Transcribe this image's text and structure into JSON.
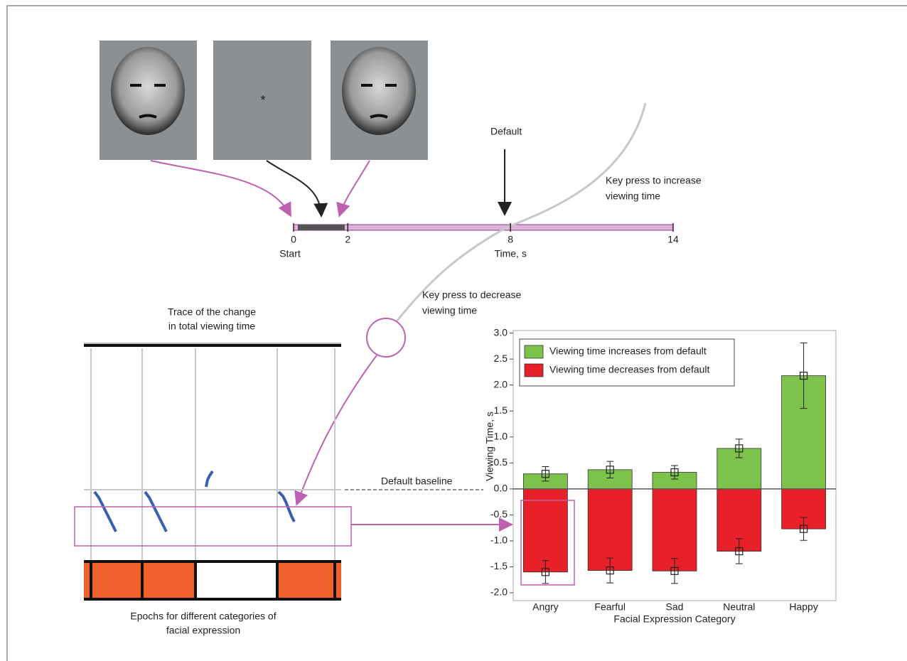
{
  "stimuli": {
    "fixation": "*"
  },
  "timeline": {
    "ticks": [
      0,
      2,
      8,
      14
    ],
    "start_label": "Start",
    "axis_label": "Time, s",
    "default_label": "Default"
  },
  "annotations": {
    "increase": [
      "Key press to increase",
      "viewing time"
    ],
    "decrease": [
      "Key press to decrease",
      "viewing time"
    ],
    "trace_title": [
      "Trace of the change",
      "in total viewing time"
    ],
    "baseline": "Default baseline",
    "epochs": [
      "Epochs for different categories of",
      "facial expression"
    ]
  },
  "chart_data": {
    "type": "bar",
    "x_label": "Facial Expression Category",
    "y_label": "Viewing Time, s",
    "categories": [
      "Angry",
      "Fearful",
      "Sad",
      "Neutral",
      "Happy"
    ],
    "series": [
      {
        "name": "Viewing time increases from default",
        "color": "#7dc24a",
        "values": [
          0.29,
          0.37,
          0.32,
          0.78,
          2.18
        ],
        "errors": [
          0.14,
          0.16,
          0.13,
          0.18,
          0.63
        ]
      },
      {
        "name": "Viewing time decreases from default",
        "color": "#e8202a",
        "values": [
          -1.6,
          -1.57,
          -1.58,
          -1.2,
          -0.77
        ],
        "errors": [
          0.22,
          0.24,
          0.24,
          0.24,
          0.22
        ]
      }
    ],
    "ylim": [
      -2.15,
      3.05
    ],
    "yticks": [
      {
        "value": -2,
        "label": "-2.0"
      },
      {
        "value": -1.5,
        "label": "-1.5"
      },
      {
        "value": -1,
        "label": "-1.0"
      },
      {
        "value": -0.5,
        "label": "-0.5"
      },
      {
        "value": 0,
        "label": "0.0"
      },
      {
        "value": 0.5,
        "label": "0.5"
      },
      {
        "value": 1,
        "label": "1.0"
      },
      {
        "value": 1.5,
        "label": "1.5"
      },
      {
        "value": 2,
        "label": "2.0"
      },
      {
        "value": 2.5,
        "label": "2.5"
      },
      {
        "value": 3,
        "label": "3.0"
      }
    ],
    "legend": "upper-left"
  }
}
